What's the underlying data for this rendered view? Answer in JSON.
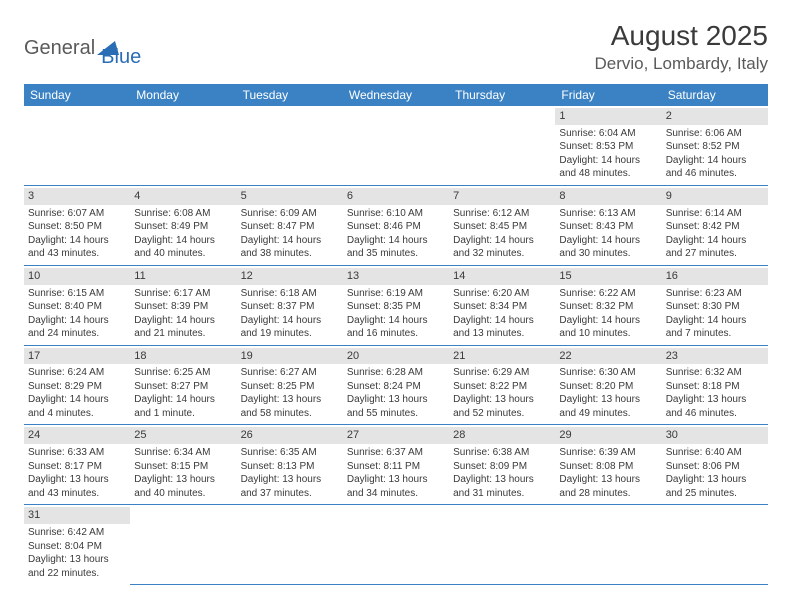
{
  "logo": {
    "part1": "General",
    "part2": "Blue"
  },
  "title": "August 2025",
  "location": "Dervio, Lombardy, Italy",
  "headers": [
    "Sunday",
    "Monday",
    "Tuesday",
    "Wednesday",
    "Thursday",
    "Friday",
    "Saturday"
  ],
  "colors": {
    "header_bg": "#3b82c4",
    "header_text": "#ffffff",
    "daynum_bg": "#e4e4e4",
    "text": "#3a3a3a",
    "logo_gray": "#5a5a5a",
    "logo_blue": "#2a6db5",
    "border": "#3b82c4"
  },
  "weeks": [
    [
      null,
      null,
      null,
      null,
      null,
      {
        "n": "1",
        "sr": "Sunrise: 6:04 AM",
        "ss": "Sunset: 8:53 PM",
        "dl1": "Daylight: 14 hours",
        "dl2": "and 48 minutes."
      },
      {
        "n": "2",
        "sr": "Sunrise: 6:06 AM",
        "ss": "Sunset: 8:52 PM",
        "dl1": "Daylight: 14 hours",
        "dl2": "and 46 minutes."
      }
    ],
    [
      {
        "n": "3",
        "sr": "Sunrise: 6:07 AM",
        "ss": "Sunset: 8:50 PM",
        "dl1": "Daylight: 14 hours",
        "dl2": "and 43 minutes."
      },
      {
        "n": "4",
        "sr": "Sunrise: 6:08 AM",
        "ss": "Sunset: 8:49 PM",
        "dl1": "Daylight: 14 hours",
        "dl2": "and 40 minutes."
      },
      {
        "n": "5",
        "sr": "Sunrise: 6:09 AM",
        "ss": "Sunset: 8:47 PM",
        "dl1": "Daylight: 14 hours",
        "dl2": "and 38 minutes."
      },
      {
        "n": "6",
        "sr": "Sunrise: 6:10 AM",
        "ss": "Sunset: 8:46 PM",
        "dl1": "Daylight: 14 hours",
        "dl2": "and 35 minutes."
      },
      {
        "n": "7",
        "sr": "Sunrise: 6:12 AM",
        "ss": "Sunset: 8:45 PM",
        "dl1": "Daylight: 14 hours",
        "dl2": "and 32 minutes."
      },
      {
        "n": "8",
        "sr": "Sunrise: 6:13 AM",
        "ss": "Sunset: 8:43 PM",
        "dl1": "Daylight: 14 hours",
        "dl2": "and 30 minutes."
      },
      {
        "n": "9",
        "sr": "Sunrise: 6:14 AM",
        "ss": "Sunset: 8:42 PM",
        "dl1": "Daylight: 14 hours",
        "dl2": "and 27 minutes."
      }
    ],
    [
      {
        "n": "10",
        "sr": "Sunrise: 6:15 AM",
        "ss": "Sunset: 8:40 PM",
        "dl1": "Daylight: 14 hours",
        "dl2": "and 24 minutes."
      },
      {
        "n": "11",
        "sr": "Sunrise: 6:17 AM",
        "ss": "Sunset: 8:39 PM",
        "dl1": "Daylight: 14 hours",
        "dl2": "and 21 minutes."
      },
      {
        "n": "12",
        "sr": "Sunrise: 6:18 AM",
        "ss": "Sunset: 8:37 PM",
        "dl1": "Daylight: 14 hours",
        "dl2": "and 19 minutes."
      },
      {
        "n": "13",
        "sr": "Sunrise: 6:19 AM",
        "ss": "Sunset: 8:35 PM",
        "dl1": "Daylight: 14 hours",
        "dl2": "and 16 minutes."
      },
      {
        "n": "14",
        "sr": "Sunrise: 6:20 AM",
        "ss": "Sunset: 8:34 PM",
        "dl1": "Daylight: 14 hours",
        "dl2": "and 13 minutes."
      },
      {
        "n": "15",
        "sr": "Sunrise: 6:22 AM",
        "ss": "Sunset: 8:32 PM",
        "dl1": "Daylight: 14 hours",
        "dl2": "and 10 minutes."
      },
      {
        "n": "16",
        "sr": "Sunrise: 6:23 AM",
        "ss": "Sunset: 8:30 PM",
        "dl1": "Daylight: 14 hours",
        "dl2": "and 7 minutes."
      }
    ],
    [
      {
        "n": "17",
        "sr": "Sunrise: 6:24 AM",
        "ss": "Sunset: 8:29 PM",
        "dl1": "Daylight: 14 hours",
        "dl2": "and 4 minutes."
      },
      {
        "n": "18",
        "sr": "Sunrise: 6:25 AM",
        "ss": "Sunset: 8:27 PM",
        "dl1": "Daylight: 14 hours",
        "dl2": "and 1 minute."
      },
      {
        "n": "19",
        "sr": "Sunrise: 6:27 AM",
        "ss": "Sunset: 8:25 PM",
        "dl1": "Daylight: 13 hours",
        "dl2": "and 58 minutes."
      },
      {
        "n": "20",
        "sr": "Sunrise: 6:28 AM",
        "ss": "Sunset: 8:24 PM",
        "dl1": "Daylight: 13 hours",
        "dl2": "and 55 minutes."
      },
      {
        "n": "21",
        "sr": "Sunrise: 6:29 AM",
        "ss": "Sunset: 8:22 PM",
        "dl1": "Daylight: 13 hours",
        "dl2": "and 52 minutes."
      },
      {
        "n": "22",
        "sr": "Sunrise: 6:30 AM",
        "ss": "Sunset: 8:20 PM",
        "dl1": "Daylight: 13 hours",
        "dl2": "and 49 minutes."
      },
      {
        "n": "23",
        "sr": "Sunrise: 6:32 AM",
        "ss": "Sunset: 8:18 PM",
        "dl1": "Daylight: 13 hours",
        "dl2": "and 46 minutes."
      }
    ],
    [
      {
        "n": "24",
        "sr": "Sunrise: 6:33 AM",
        "ss": "Sunset: 8:17 PM",
        "dl1": "Daylight: 13 hours",
        "dl2": "and 43 minutes."
      },
      {
        "n": "25",
        "sr": "Sunrise: 6:34 AM",
        "ss": "Sunset: 8:15 PM",
        "dl1": "Daylight: 13 hours",
        "dl2": "and 40 minutes."
      },
      {
        "n": "26",
        "sr": "Sunrise: 6:35 AM",
        "ss": "Sunset: 8:13 PM",
        "dl1": "Daylight: 13 hours",
        "dl2": "and 37 minutes."
      },
      {
        "n": "27",
        "sr": "Sunrise: 6:37 AM",
        "ss": "Sunset: 8:11 PM",
        "dl1": "Daylight: 13 hours",
        "dl2": "and 34 minutes."
      },
      {
        "n": "28",
        "sr": "Sunrise: 6:38 AM",
        "ss": "Sunset: 8:09 PM",
        "dl1": "Daylight: 13 hours",
        "dl2": "and 31 minutes."
      },
      {
        "n": "29",
        "sr": "Sunrise: 6:39 AM",
        "ss": "Sunset: 8:08 PM",
        "dl1": "Daylight: 13 hours",
        "dl2": "and 28 minutes."
      },
      {
        "n": "30",
        "sr": "Sunrise: 6:40 AM",
        "ss": "Sunset: 8:06 PM",
        "dl1": "Daylight: 13 hours",
        "dl2": "and 25 minutes."
      }
    ],
    [
      {
        "n": "31",
        "sr": "Sunrise: 6:42 AM",
        "ss": "Sunset: 8:04 PM",
        "dl1": "Daylight: 13 hours",
        "dl2": "and 22 minutes."
      },
      null,
      null,
      null,
      null,
      null,
      null
    ]
  ]
}
